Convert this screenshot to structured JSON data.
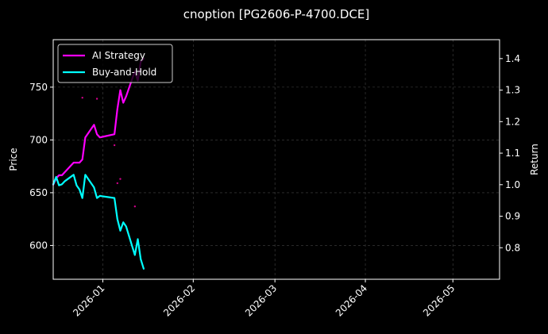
{
  "colors": {
    "background": "#000000",
    "foreground": "#ffffff",
    "grid": "#444444",
    "strategy": "#ff00ff",
    "buyhold": "#00ffff"
  },
  "chart_data": {
    "type": "line",
    "title": "cnoption [PG2606-P-4700.DCE]",
    "xlabel": "",
    "ylabel_left": "Price",
    "ylabel_right": "Return",
    "xlim": [
      "2025-12-15",
      "2026-05-17"
    ],
    "ylim_left": [
      568,
      795
    ],
    "ylim_right": [
      0.7,
      1.46
    ],
    "x_ticks": [
      "2026-01-01",
      "2026-02-01",
      "2026-03-01",
      "2026-04-01",
      "2026-05-01"
    ],
    "x_tick_labels": [
      "2026-01",
      "2026-02",
      "2026-03",
      "2026-04",
      "2026-05"
    ],
    "y_ticks_left": [
      600,
      650,
      700,
      750
    ],
    "y_ticks_right": [
      0.8,
      0.9,
      1.0,
      1.1,
      1.2,
      1.3,
      1.4
    ],
    "grid": true,
    "legend_position": "top-left",
    "series": [
      {
        "name": "AI Strategy",
        "axis": "right",
        "x": [
          "2025-12-15",
          "2025-12-16",
          "2025-12-17",
          "2025-12-18",
          "2025-12-19",
          "2025-12-22",
          "2025-12-23",
          "2025-12-24",
          "2025-12-25",
          "2025-12-26",
          "2025-12-29",
          "2025-12-30",
          "2025-12-31",
          "2026-01-05",
          "2026-01-06",
          "2026-01-07",
          "2026-01-08",
          "2026-01-09",
          "2026-01-12",
          "2026-01-13",
          "2026-01-14",
          "2026-01-15"
        ],
        "values": [
          1.0,
          1.02,
          1.03,
          1.03,
          1.04,
          1.07,
          1.07,
          1.07,
          1.08,
          1.15,
          1.19,
          1.16,
          1.15,
          1.16,
          1.24,
          1.3,
          1.26,
          1.28,
          1.36,
          1.33,
          1.39,
          1.4
        ]
      },
      {
        "name": "Buy-and-Hold",
        "axis": "left",
        "x": [
          "2025-12-15",
          "2025-12-16",
          "2025-12-17",
          "2025-12-18",
          "2025-12-19",
          "2025-12-22",
          "2025-12-23",
          "2025-12-24",
          "2025-12-25",
          "2025-12-26",
          "2025-12-29",
          "2025-12-30",
          "2025-12-31",
          "2026-01-05",
          "2026-01-06",
          "2026-01-07",
          "2026-01-08",
          "2026-01-09",
          "2026-01-12",
          "2026-01-13",
          "2026-01-14",
          "2026-01-15"
        ],
        "values": [
          658,
          665,
          657,
          658,
          661,
          667,
          657,
          653,
          645,
          667,
          655,
          645,
          647,
          645,
          625,
          614,
          622,
          618,
          591,
          606,
          587,
          578
        ]
      }
    ],
    "markers": [
      {
        "x": "2025-12-25",
        "y": 740
      },
      {
        "x": "2025-12-30",
        "y": 739
      },
      {
        "x": "2026-01-05",
        "y": 695
      },
      {
        "x": "2026-01-06",
        "y": 659
      },
      {
        "x": "2026-01-07",
        "y": 663
      },
      {
        "x": "2026-01-12",
        "y": 637
      }
    ]
  }
}
